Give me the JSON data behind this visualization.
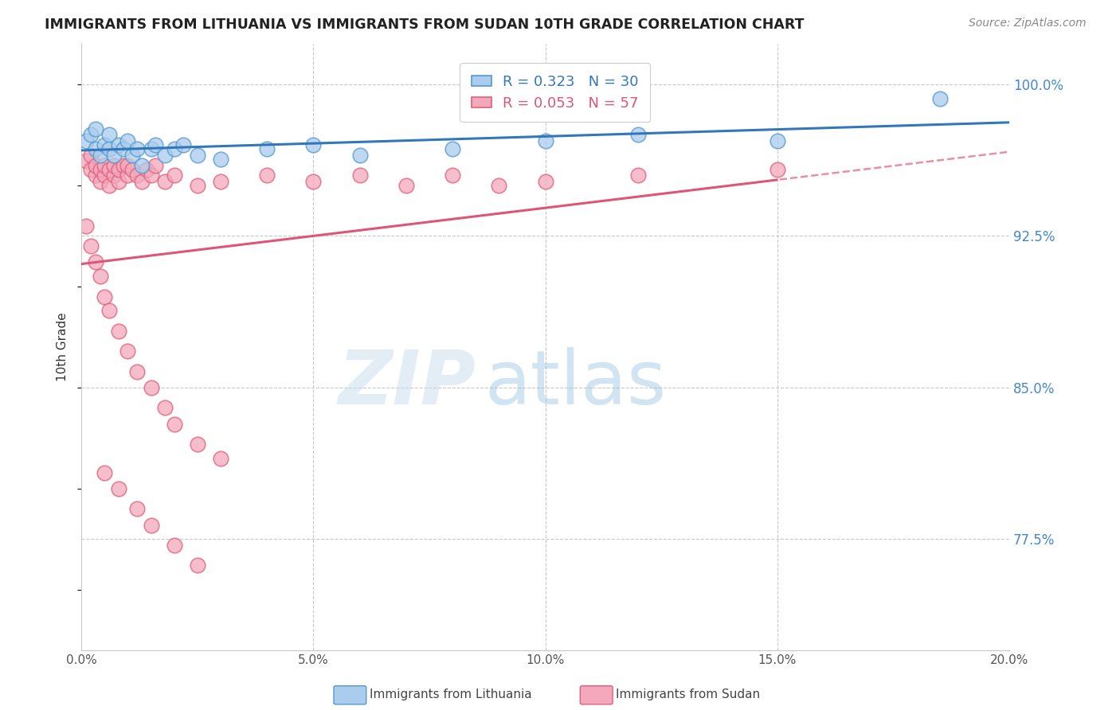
{
  "title": "IMMIGRANTS FROM LITHUANIA VS IMMIGRANTS FROM SUDAN 10TH GRADE CORRELATION CHART",
  "source": "Source: ZipAtlas.com",
  "ylabel": "10th Grade",
  "xlim": [
    0.0,
    0.2
  ],
  "ylim": [
    0.72,
    1.02
  ],
  "yticks": [
    0.775,
    0.85,
    0.925,
    1.0
  ],
  "ytick_labels": [
    "77.5%",
    "85.0%",
    "92.5%",
    "100.0%"
  ],
  "xticks": [
    0.0,
    0.05,
    0.1,
    0.15,
    0.2
  ],
  "xtick_labels": [
    "0.0%",
    "5.0%",
    "10.0%",
    "15.0%",
    "20.0%"
  ],
  "blue_R": 0.323,
  "blue_N": 30,
  "pink_R": 0.053,
  "pink_N": 57,
  "background_color": "#ffffff",
  "grid_color": "#c8c8c8",
  "blue_fill": "#aaccee",
  "blue_edge": "#5599cc",
  "pink_fill": "#f4a8bc",
  "pink_edge": "#e0607a",
  "blue_line_color": "#3377bb",
  "pink_line_color": "#dd5577",
  "legend_label_blue": "Immigrants from Lithuania",
  "legend_label_pink": "Immigrants from Sudan",
  "blue_scatter_x": [
    0.001,
    0.002,
    0.003,
    0.004,
    0.005,
    0.006,
    0.007,
    0.008,
    0.009,
    0.01,
    0.011,
    0.012,
    0.013,
    0.014,
    0.015,
    0.016,
    0.018,
    0.02,
    0.022,
    0.025,
    0.03,
    0.035,
    0.04,
    0.05,
    0.06,
    0.08,
    0.1,
    0.12,
    0.15,
    0.185
  ],
  "blue_scatter_y": [
    0.968,
    0.972,
    0.965,
    0.975,
    0.968,
    0.97,
    0.96,
    0.965,
    0.97,
    0.968,
    0.965,
    0.972,
    0.96,
    0.968,
    0.972,
    0.965,
    0.968,
    0.97,
    0.965,
    0.968,
    0.962,
    0.965,
    0.968,
    0.97,
    0.965,
    0.968,
    0.972,
    0.975,
    0.972,
    0.992
  ],
  "pink_scatter_x": [
    0.001,
    0.002,
    0.002,
    0.003,
    0.003,
    0.004,
    0.004,
    0.005,
    0.005,
    0.006,
    0.006,
    0.007,
    0.007,
    0.008,
    0.008,
    0.009,
    0.009,
    0.01,
    0.01,
    0.011,
    0.011,
    0.012,
    0.012,
    0.013,
    0.013,
    0.014,
    0.015,
    0.016,
    0.017,
    0.018,
    0.02,
    0.022,
    0.025,
    0.03,
    0.035,
    0.04,
    0.05,
    0.06,
    0.07,
    0.08,
    0.09,
    0.1,
    0.12,
    0.15,
    0.002,
    0.003,
    0.004,
    0.005,
    0.006,
    0.008,
    0.01,
    0.012,
    0.015,
    0.018,
    0.02,
    0.025,
    0.03
  ],
  "pink_scatter_y": [
    0.96,
    0.958,
    0.965,
    0.955,
    0.96,
    0.952,
    0.958,
    0.955,
    0.96,
    0.95,
    0.958,
    0.952,
    0.96,
    0.955,
    0.948,
    0.955,
    0.96,
    0.952,
    0.958,
    0.955,
    0.948,
    0.955,
    0.96,
    0.95,
    0.958,
    0.952,
    0.958,
    0.955,
    0.95,
    0.952,
    0.955,
    0.95,
    0.948,
    0.952,
    0.955,
    0.95,
    0.952,
    0.955,
    0.948,
    0.955,
    0.95,
    0.952,
    0.955,
    0.958,
    0.91,
    0.905,
    0.895,
    0.888,
    0.878,
    0.865,
    0.855,
    0.845,
    0.835,
    0.825,
    0.815,
    0.8,
    0.788
  ]
}
